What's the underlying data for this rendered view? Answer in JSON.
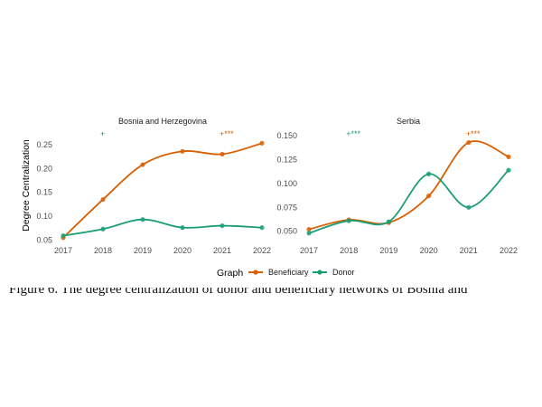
{
  "chart_data": [
    {
      "type": "line",
      "title": "Bosnia and Herzegovina",
      "ylabel": "Degree Centralization",
      "x": [
        2017,
        2018,
        2019,
        2020,
        2021,
        2022
      ],
      "ylim": [
        0.045,
        0.265
      ],
      "yticks": [
        0.05,
        0.1,
        0.15,
        0.2,
        0.25
      ],
      "series": [
        {
          "name": "Beneficiary",
          "color": "#d95f02",
          "values": [
            0.055,
            0.135,
            0.208,
            0.236,
            0.23,
            0.253
          ]
        },
        {
          "name": "Donor",
          "color": "#1b9e77",
          "values": [
            0.059,
            0.073,
            0.093,
            0.076,
            0.08,
            0.076
          ]
        }
      ],
      "annotations": [
        {
          "x": 2018,
          "text": "+",
          "color": "#1b9e77"
        },
        {
          "x": 2021,
          "text": "+***",
          "color": "#d95f02"
        }
      ],
      "grid": false
    },
    {
      "type": "line",
      "title": "Serbia",
      "x": [
        2017,
        2018,
        2019,
        2020,
        2021,
        2022
      ],
      "ylim": [
        0.044,
        0.153
      ],
      "yticks": [
        0.05,
        0.075,
        0.1,
        0.125,
        0.15
      ],
      "series": [
        {
          "name": "Beneficiary",
          "color": "#d95f02",
          "values": [
            0.052,
            0.062,
            0.059,
            0.087,
            0.143,
            0.128
          ]
        },
        {
          "name": "Donor",
          "color": "#1b9e77",
          "values": [
            0.048,
            0.061,
            0.06,
            0.11,
            0.075,
            0.114
          ]
        }
      ],
      "annotations": [
        {
          "x": 2018,
          "text": "+***",
          "color": "#1b9e77"
        },
        {
          "x": 2021,
          "text": "+***",
          "color": "#d95f02"
        }
      ],
      "grid": false
    }
  ],
  "legend": {
    "title": "Graph",
    "items": [
      {
        "label": "Beneficiary",
        "color": "#d95f02"
      },
      {
        "label": "Donor",
        "color": "#1b9e77"
      }
    ]
  },
  "caption": "Figure 6. The degree centralization of donor and beneficiary networks of Bosnia and"
}
